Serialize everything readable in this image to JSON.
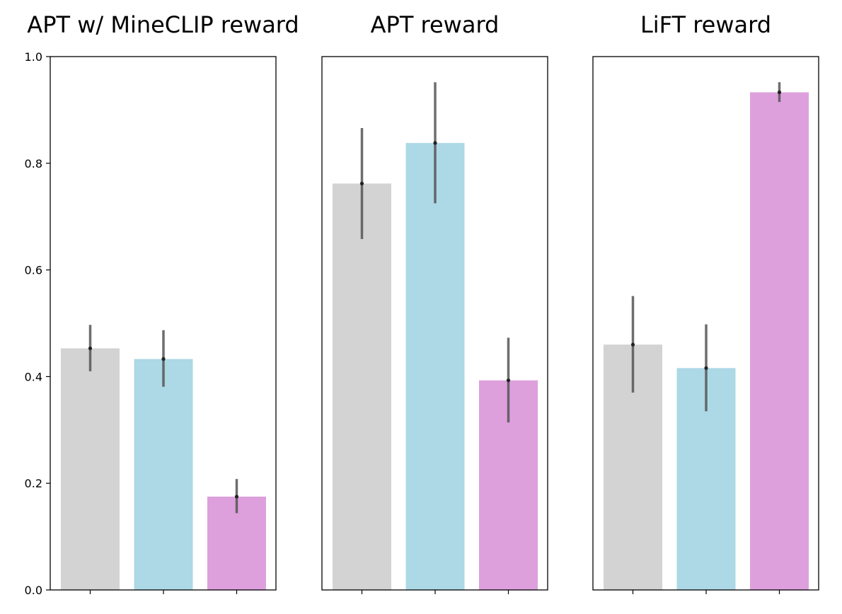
{
  "chart_data": {
    "type": "bar",
    "ylim": [
      0,
      1
    ],
    "yticks": [
      "0.0",
      "0.2",
      "0.4",
      "0.6",
      "0.8",
      "1.0"
    ],
    "bar_colors": [
      "#d3d3d3",
      "#add8e6",
      "#dda0dd"
    ],
    "error_bar_color": "#555555",
    "panels": [
      {
        "title": "APT w/ MineCLIP reward",
        "values": [
          0.453,
          0.433,
          0.175
        ],
        "errors": [
          [
            0.41,
            0.497
          ],
          [
            0.381,
            0.487
          ],
          [
            0.144,
            0.208
          ]
        ]
      },
      {
        "title": "APT reward",
        "values": [
          0.762,
          0.838,
          0.393
        ],
        "errors": [
          [
            0.658,
            0.866
          ],
          [
            0.725,
            0.952
          ],
          [
            0.314,
            0.473
          ]
        ]
      },
      {
        "title": "LiFT reward",
        "values": [
          0.46,
          0.416,
          0.933
        ],
        "errors": [
          [
            0.37,
            0.551
          ],
          [
            0.335,
            0.498
          ],
          [
            0.915,
            0.952
          ]
        ]
      }
    ]
  }
}
